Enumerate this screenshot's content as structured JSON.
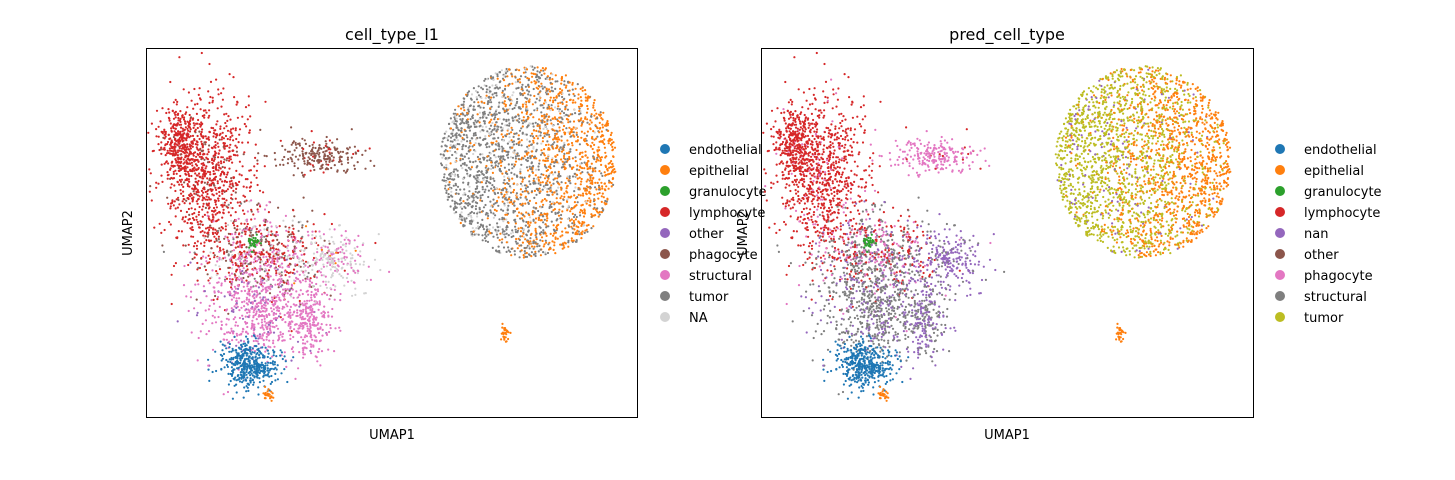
{
  "chart_data": [
    {
      "type": "scatter",
      "title": "cell_type_l1",
      "xlabel": "UMAP1",
      "ylabel": "UMAP2",
      "xticks": false,
      "yticks": false,
      "grid": false,
      "legend_placement": "right, outside plot",
      "legend": [
        {
          "label": "endothelial",
          "color": "#1f77b4"
        },
        {
          "label": "epithelial",
          "color": "#ff7f0e"
        },
        {
          "label": "granulocyte",
          "color": "#2ca02c"
        },
        {
          "label": "lymphocyte",
          "color": "#d62728"
        },
        {
          "label": "other",
          "color": "#9467bd"
        },
        {
          "label": "phagocyte",
          "color": "#8c564b"
        },
        {
          "label": "structural",
          "color": "#e377c2"
        },
        {
          "label": "tumor",
          "color": "#7f7f7f"
        },
        {
          "label": "NA",
          "color": "#d3d3d3"
        }
      ]
    },
    {
      "type": "scatter",
      "title": "pred_cell_type",
      "xlabel": "UMAP1",
      "ylabel": "UMAP2",
      "xticks": false,
      "yticks": false,
      "grid": false,
      "legend_placement": "right, outside plot",
      "legend": [
        {
          "label": "endothelial",
          "color": "#1f77b4"
        },
        {
          "label": "epithelial",
          "color": "#ff7f0e"
        },
        {
          "label": "granulocyte",
          "color": "#2ca02c"
        },
        {
          "label": "lymphocyte",
          "color": "#d62728"
        },
        {
          "label": "nan",
          "color": "#9467bd"
        },
        {
          "label": "other",
          "color": "#8c564b"
        },
        {
          "label": "phagocyte",
          "color": "#e377c2"
        },
        {
          "label": "structural",
          "color": "#7f7f7f"
        },
        {
          "label": "tumor",
          "color": "#bcbd22"
        }
      ]
    }
  ]
}
